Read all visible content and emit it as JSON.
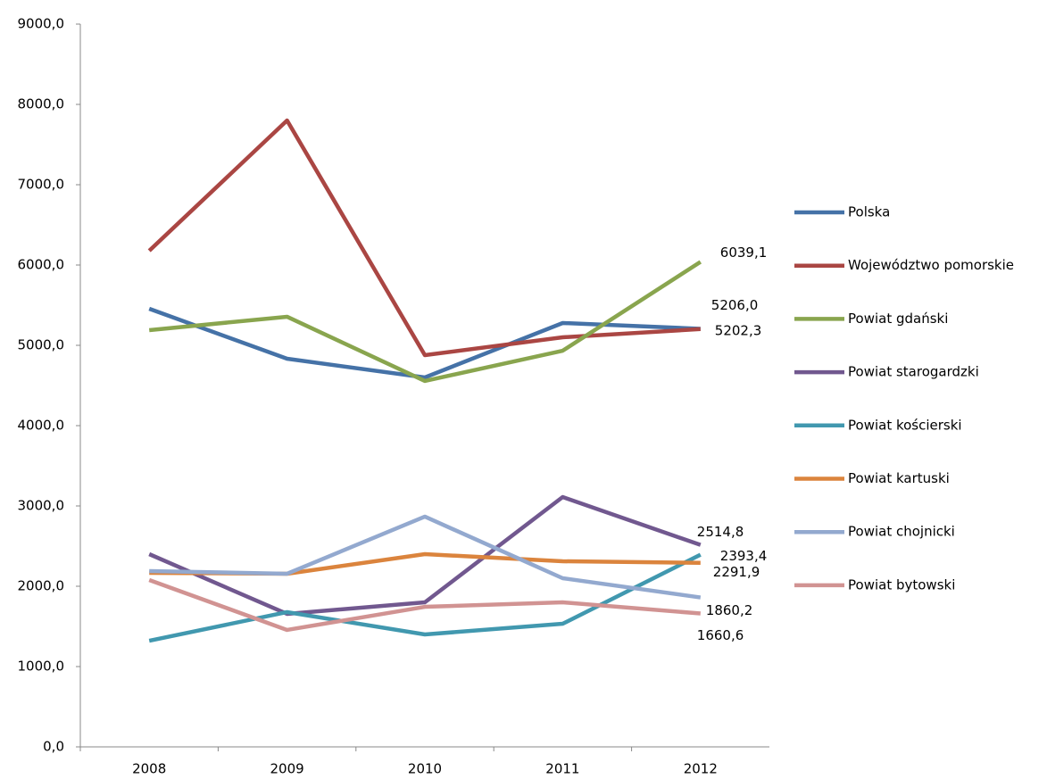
{
  "chart_data": {
    "type": "line",
    "x": [
      "2008",
      "2009",
      "2010",
      "2011",
      "2012"
    ],
    "ylim": [
      0,
      9000
    ],
    "yticks": [
      {
        "value": 0,
        "label": "0,0"
      },
      {
        "value": 1000,
        "label": "1000,0"
      },
      {
        "value": 2000,
        "label": "2000,0"
      },
      {
        "value": 3000,
        "label": "3000,0"
      },
      {
        "value": 4000,
        "label": "4000,0"
      },
      {
        "value": 5000,
        "label": "5000,0"
      },
      {
        "value": 6000,
        "label": "6000,0"
      },
      {
        "value": 7000,
        "label": "7000,0"
      },
      {
        "value": 8000,
        "label": "8000,0"
      },
      {
        "value": 9000,
        "label": "9000,0"
      }
    ],
    "grid": false,
    "legend": "right",
    "series": [
      {
        "name": "Polska",
        "color": "#4572a7",
        "values": [
          5456,
          4833,
          4600,
          5278,
          5206.0
        ],
        "value_labels": [
          null,
          null,
          null,
          null,
          "5206,0"
        ]
      },
      {
        "name": "Województwo pomorskie",
        "color": "#aa4643",
        "values": [
          6178,
          7800,
          4878,
          5100,
          5202.3
        ],
        "value_labels": [
          null,
          null,
          null,
          null,
          "5202,3"
        ]
      },
      {
        "name": "Powiat gdański",
        "color": "#89a54e",
        "values": [
          5189,
          5356,
          4556,
          4933,
          6039.1
        ],
        "value_labels": [
          null,
          null,
          null,
          null,
          "6039,1"
        ]
      },
      {
        "name": "Powiat starogardzki",
        "color": "#71588f",
        "values": [
          2400,
          1656,
          1800,
          3111,
          2514.8
        ],
        "value_labels": [
          null,
          null,
          null,
          null,
          "2514,8"
        ]
      },
      {
        "name": "Powiat kościerski",
        "color": "#4198af",
        "values": [
          1322,
          1678,
          1400,
          1533,
          2393.4
        ],
        "value_labels": [
          null,
          null,
          null,
          null,
          "2393,4"
        ]
      },
      {
        "name": "Powiat kartuski",
        "color": "#db843d",
        "values": [
          2167,
          2156,
          2400,
          2311,
          2291.9
        ],
        "value_labels": [
          null,
          null,
          null,
          null,
          "2291,9"
        ]
      },
      {
        "name": "Powiat chojnicki",
        "color": "#93a9cf",
        "values": [
          2189,
          2156,
          2867,
          2100,
          1860.2
        ],
        "value_labels": [
          null,
          null,
          null,
          null,
          "1860,2"
        ]
      },
      {
        "name": "Powiat bytowski",
        "color": "#d19392",
        "values": [
          2078,
          1456,
          1744,
          1800,
          1660.6
        ],
        "value_labels": [
          null,
          null,
          null,
          null,
          "1660,6"
        ]
      }
    ]
  }
}
